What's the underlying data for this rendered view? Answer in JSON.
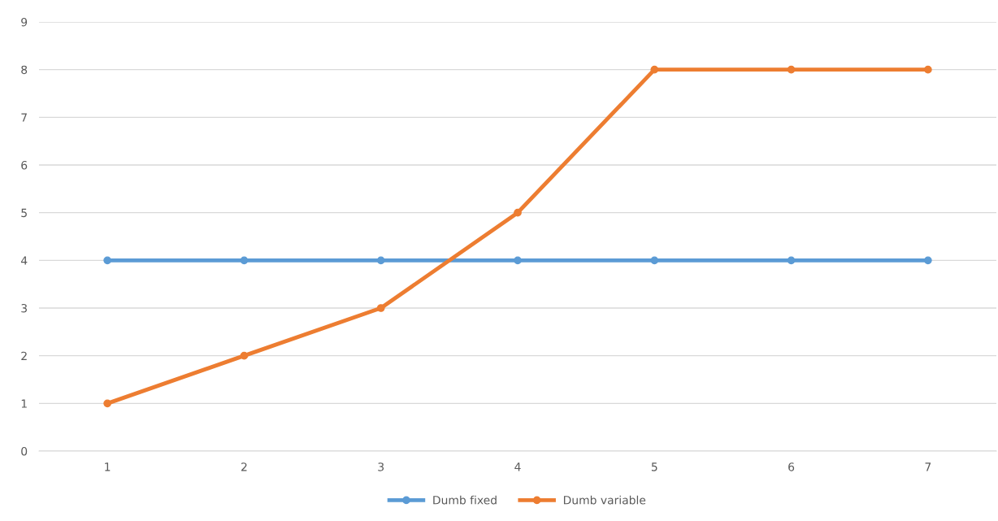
{
  "chart_data": {
    "type": "line",
    "categories": [
      "1",
      "2",
      "3",
      "4",
      "5",
      "6",
      "7"
    ],
    "series": [
      {
        "name": "Dumb fixed",
        "color": "#5b9bd5",
        "values": [
          4,
          4,
          4,
          4,
          4,
          4,
          4
        ]
      },
      {
        "name": "Dumb variable",
        "color": "#ed7d31",
        "values": [
          1,
          2,
          3,
          5,
          8,
          8,
          8
        ]
      }
    ],
    "ylim": [
      0,
      9
    ],
    "yticks": [
      0,
      1,
      2,
      3,
      4,
      5,
      6,
      7,
      8,
      9
    ],
    "grid": "y",
    "legend": "bottom",
    "marker": "circle",
    "line_style": "solid"
  }
}
